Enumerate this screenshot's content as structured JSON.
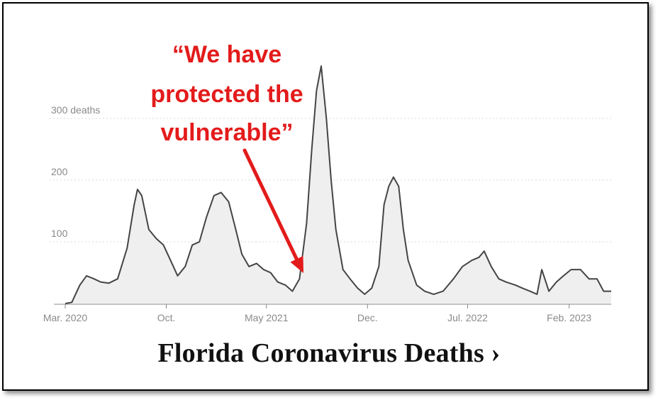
{
  "caption": "Florida Coronavirus Deaths ›",
  "annotation": {
    "lines": [
      "“We have",
      "protected the",
      "vulnerable”"
    ],
    "color": "#e31b1b"
  },
  "chart_data": {
    "type": "area",
    "title": "Florida Coronavirus Deaths ›",
    "xlabel": "",
    "ylabel": "",
    "ylim": [
      0,
      400
    ],
    "y_ticks": [
      {
        "value": 100,
        "label": "100"
      },
      {
        "value": 200,
        "label": "200"
      },
      {
        "value": 300,
        "label": "300 deaths"
      }
    ],
    "x_ticks": [
      {
        "value": "2020-03",
        "label": "Mar. 2020"
      },
      {
        "value": "2020-10",
        "label": "Oct."
      },
      {
        "value": "2021-05",
        "label": "May 2021"
      },
      {
        "value": "2021-12",
        "label": "Dec."
      },
      {
        "value": "2022-07",
        "label": "Jul. 2022"
      },
      {
        "value": "2023-02",
        "label": "Feb. 2023"
      }
    ],
    "xlim": [
      "2020-03-01",
      "2023-05-01"
    ],
    "grid": true,
    "series": [
      {
        "name": "",
        "color": "#444444",
        "fill": "#efefef",
        "points": [
          [
            "2020-03-01",
            0
          ],
          [
            "2020-03-15",
            2
          ],
          [
            "2020-04-01",
            30
          ],
          [
            "2020-04-15",
            45
          ],
          [
            "2020-05-01",
            40
          ],
          [
            "2020-05-15",
            35
          ],
          [
            "2020-06-01",
            33
          ],
          [
            "2020-06-20",
            40
          ],
          [
            "2020-07-10",
            90
          ],
          [
            "2020-07-25",
            160
          ],
          [
            "2020-08-01",
            185
          ],
          [
            "2020-08-10",
            175
          ],
          [
            "2020-08-25",
            120
          ],
          [
            "2020-09-10",
            105
          ],
          [
            "2020-09-25",
            95
          ],
          [
            "2020-10-10",
            70
          ],
          [
            "2020-10-25",
            45
          ],
          [
            "2020-11-10",
            60
          ],
          [
            "2020-11-25",
            95
          ],
          [
            "2020-12-10",
            100
          ],
          [
            "2020-12-25",
            140
          ],
          [
            "2021-01-10",
            175
          ],
          [
            "2021-01-25",
            180
          ],
          [
            "2021-02-10",
            165
          ],
          [
            "2021-02-25",
            120
          ],
          [
            "2021-03-10",
            80
          ],
          [
            "2021-03-25",
            60
          ],
          [
            "2021-04-10",
            65
          ],
          [
            "2021-04-25",
            55
          ],
          [
            "2021-05-10",
            50
          ],
          [
            "2021-05-25",
            35
          ],
          [
            "2021-06-10",
            30
          ],
          [
            "2021-06-25",
            20
          ],
          [
            "2021-07-10",
            40
          ],
          [
            "2021-07-25",
            130
          ],
          [
            "2021-08-05",
            250
          ],
          [
            "2021-08-15",
            345
          ],
          [
            "2021-08-25",
            385
          ],
          [
            "2021-09-05",
            300
          ],
          [
            "2021-09-15",
            200
          ],
          [
            "2021-09-25",
            120
          ],
          [
            "2021-10-10",
            55
          ],
          [
            "2021-10-25",
            40
          ],
          [
            "2021-11-10",
            25
          ],
          [
            "2021-11-25",
            15
          ],
          [
            "2021-12-10",
            25
          ],
          [
            "2021-12-25",
            60
          ],
          [
            "2022-01-05",
            160
          ],
          [
            "2022-01-15",
            190
          ],
          [
            "2022-01-25",
            205
          ],
          [
            "2022-02-05",
            190
          ],
          [
            "2022-02-15",
            120
          ],
          [
            "2022-02-25",
            70
          ],
          [
            "2022-03-15",
            30
          ],
          [
            "2022-04-01",
            20
          ],
          [
            "2022-04-20",
            15
          ],
          [
            "2022-05-10",
            20
          ],
          [
            "2022-06-01",
            40
          ],
          [
            "2022-06-20",
            60
          ],
          [
            "2022-07-10",
            70
          ],
          [
            "2022-07-25",
            75
          ],
          [
            "2022-08-05",
            85
          ],
          [
            "2022-08-20",
            60
          ],
          [
            "2022-09-05",
            40
          ],
          [
            "2022-09-20",
            35
          ],
          [
            "2022-10-10",
            30
          ],
          [
            "2022-10-25",
            25
          ],
          [
            "2022-11-10",
            20
          ],
          [
            "2022-11-25",
            15
          ],
          [
            "2022-12-05",
            55
          ],
          [
            "2022-12-20",
            20
          ],
          [
            "2023-01-05",
            35
          ],
          [
            "2023-01-20",
            45
          ],
          [
            "2023-02-05",
            55
          ],
          [
            "2023-02-25",
            55
          ],
          [
            "2023-03-15",
            40
          ],
          [
            "2023-04-01",
            40
          ],
          [
            "2023-04-15",
            20
          ],
          [
            "2023-05-01",
            20
          ]
        ]
      }
    ]
  }
}
